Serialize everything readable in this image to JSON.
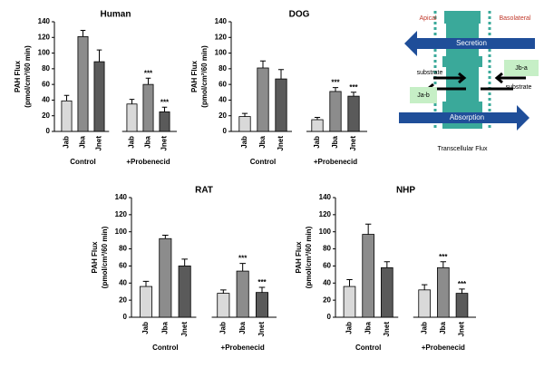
{
  "chart_data": [
    {
      "type": "bar",
      "title": "Human",
      "ylabel": [
        "PAH Flux",
        "(pmol/cm²/60 min)"
      ],
      "categories": [
        "Jab",
        "Jba",
        "Jnet",
        "Jab",
        "Jba",
        "Jnet"
      ],
      "groups": [
        "Control",
        "+Probenecid"
      ],
      "values": [
        39,
        121,
        89,
        35,
        60,
        25
      ],
      "errors": [
        7,
        8,
        15,
        6,
        8,
        6
      ],
      "annotations": [
        null,
        null,
        null,
        null,
        "***",
        "***"
      ],
      "colors": [
        "#d9d9d9",
        "#8c8c8c",
        "#5a5a5a",
        "#d9d9d9",
        "#8c8c8c",
        "#5a5a5a"
      ],
      "ylim": [
        0,
        140
      ],
      "yticks": [
        0,
        20,
        40,
        60,
        80,
        100,
        120,
        140
      ]
    },
    {
      "type": "bar",
      "title": "DOG",
      "ylabel": [
        "PAH Flux",
        "(pmol/cm²/60 min)"
      ],
      "categories": [
        "Jab",
        "Jba",
        "Jnet",
        "Jab",
        "Jba",
        "Jnet"
      ],
      "groups": [
        "Control",
        "+Probenecid"
      ],
      "values": [
        19,
        81,
        67,
        15,
        51,
        45
      ],
      "errors": [
        4,
        9,
        12,
        3,
        5,
        5
      ],
      "annotations": [
        null,
        null,
        null,
        null,
        "***",
        "***"
      ],
      "colors": [
        "#d9d9d9",
        "#8c8c8c",
        "#5a5a5a",
        "#d9d9d9",
        "#8c8c8c",
        "#5a5a5a"
      ],
      "ylim": [
        0,
        140
      ],
      "yticks": [
        0,
        20,
        40,
        60,
        80,
        100,
        120,
        140
      ]
    },
    {
      "type": "bar",
      "title": "RAT",
      "ylabel": [
        "PAH Flux",
        "(pmol/cm²/60 min)"
      ],
      "categories": [
        "Jab",
        "Jba",
        "Jnet",
        "Jab",
        "Jba",
        "Jnet"
      ],
      "groups": [
        "Control",
        "+Probenecid"
      ],
      "values": [
        36,
        92,
        60,
        28,
        54,
        29
      ],
      "errors": [
        6,
        4,
        8,
        4,
        9,
        6
      ],
      "annotations": [
        null,
        null,
        null,
        null,
        "***",
        "***"
      ],
      "colors": [
        "#d9d9d9",
        "#8c8c8c",
        "#5a5a5a",
        "#d9d9d9",
        "#8c8c8c",
        "#5a5a5a"
      ],
      "ylim": [
        0,
        140
      ],
      "yticks": [
        0,
        20,
        40,
        60,
        80,
        100,
        120,
        140
      ]
    },
    {
      "type": "bar",
      "title": "NHP",
      "ylabel": [
        "PAH Flux",
        "(pmol/cm²/60 min)"
      ],
      "categories": [
        "Jab",
        "Jba",
        "Jnet",
        "Jab",
        "Jba",
        "Jnet"
      ],
      "groups": [
        "Control",
        "+Probenecid"
      ],
      "values": [
        36,
        97,
        58,
        32,
        58,
        28
      ],
      "errors": [
        8,
        12,
        7,
        6,
        7,
        5
      ],
      "annotations": [
        null,
        null,
        null,
        null,
        "***",
        "***"
      ],
      "colors": [
        "#d9d9d9",
        "#8c8c8c",
        "#5a5a5a",
        "#d9d9d9",
        "#8c8c8c",
        "#5a5a5a"
      ],
      "ylim": [
        0,
        140
      ],
      "yticks": [
        0,
        20,
        40,
        60,
        80,
        100,
        120,
        140
      ]
    }
  ],
  "diagram": {
    "apical": "Apical",
    "basolateral": "Basolateral",
    "secretion": "Secretion",
    "absorption": "Absorption",
    "substrate_left": "substrate",
    "substrate_right": "substrate",
    "j_ba": "Jb-a",
    "j_ab": "Ja-b",
    "caption": "Transcellular Flux"
  }
}
